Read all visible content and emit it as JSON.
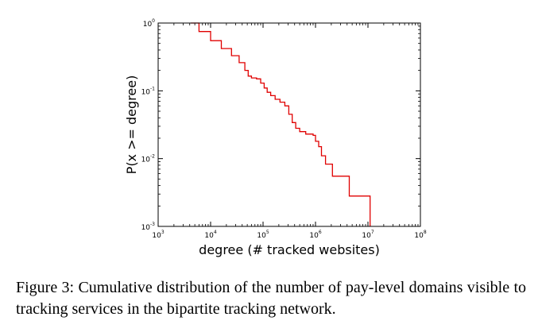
{
  "chart_data": {
    "type": "line",
    "title": "",
    "xlabel": "degree (# tracked websites)",
    "ylabel": "P(x >= degree)",
    "x_scale": "log",
    "y_scale": "log",
    "xlim": [
      1000,
      100000000
    ],
    "ylim": [
      0.001,
      1
    ],
    "x_ticks": [
      {
        "value": 1000,
        "base": "10",
        "exp": "3"
      },
      {
        "value": 10000,
        "base": "10",
        "exp": "4"
      },
      {
        "value": 100000,
        "base": "10",
        "exp": "5"
      },
      {
        "value": 1000000,
        "base": "10",
        "exp": "6"
      },
      {
        "value": 10000000,
        "base": "10",
        "exp": "7"
      },
      {
        "value": 100000000,
        "base": "10",
        "exp": "8"
      }
    ],
    "y_ticks": [
      {
        "value": 0.001,
        "base": "10",
        "exp": "-3"
      },
      {
        "value": 0.01,
        "base": "10",
        "exp": "-2"
      },
      {
        "value": 0.1,
        "base": "10",
        "exp": "-1"
      },
      {
        "value": 1,
        "base": "10",
        "exp": "0"
      }
    ],
    "grid": false,
    "series": [
      {
        "color": "#e00000",
        "step": true,
        "points": [
          [
            4200,
            1.0
          ],
          [
            6000,
            0.75
          ],
          [
            10000,
            0.55
          ],
          [
            16000,
            0.42
          ],
          [
            25000,
            0.33
          ],
          [
            35000,
            0.26
          ],
          [
            45000,
            0.2
          ],
          [
            52000,
            0.165
          ],
          [
            60000,
            0.155
          ],
          [
            75000,
            0.15
          ],
          [
            90000,
            0.13
          ],
          [
            105000,
            0.11
          ],
          [
            120000,
            0.095
          ],
          [
            140000,
            0.085
          ],
          [
            170000,
            0.075
          ],
          [
            210000,
            0.068
          ],
          [
            260000,
            0.06
          ],
          [
            310000,
            0.045
          ],
          [
            360000,
            0.034
          ],
          [
            420000,
            0.028
          ],
          [
            500000,
            0.025
          ],
          [
            650000,
            0.023
          ],
          [
            900000,
            0.022
          ],
          [
            1000000,
            0.018
          ],
          [
            1150000,
            0.015
          ],
          [
            1300000,
            0.011
          ],
          [
            1550000,
            0.0083
          ],
          [
            2100000,
            0.0055
          ],
          [
            4400000,
            0.0028
          ],
          [
            11000000,
            0.001
          ]
        ]
      }
    ]
  },
  "caption": "Figure 3: Cumulative distribution of the number of pay-level domains visible to tracking services in the bipartite tracking network."
}
